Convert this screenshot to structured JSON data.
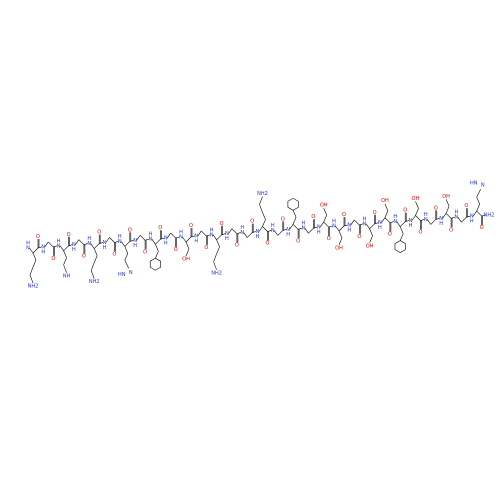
{
  "atoms": {
    "carbonyl": "O",
    "amide": "N",
    "amide_h": "H",
    "hydroxyl": "OH",
    "amine": "NH2",
    "imine": "NH",
    "ring_n": "N",
    "ring_nh": "HN"
  }
}
